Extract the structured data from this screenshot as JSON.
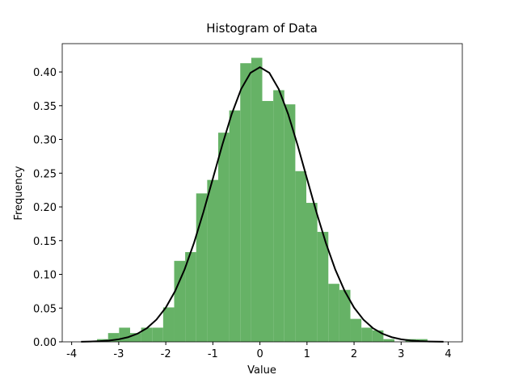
{
  "chart_data": {
    "type": "histogram",
    "title": "Histogram of Data",
    "x_label": "Value",
    "y_label": "Frequency",
    "bins": [
      -3.46,
      -3.226,
      -2.992,
      -2.758,
      -2.524,
      -2.29,
      -2.056,
      -1.822,
      -1.588,
      -1.354,
      -1.12,
      -0.886,
      -0.652,
      -0.418,
      -0.184,
      0.05,
      0.284,
      0.518,
      0.752,
      0.986,
      1.22,
      1.454,
      1.688,
      1.922,
      2.156,
      2.39,
      2.624,
      2.858,
      3.092,
      3.326,
      3.56
    ],
    "values": [
      0.004,
      0.013,
      0.021,
      0.013,
      0.021,
      0.021,
      0.051,
      0.12,
      0.133,
      0.22,
      0.24,
      0.31,
      0.343,
      0.413,
      0.421,
      0.357,
      0.373,
      0.352,
      0.253,
      0.206,
      0.163,
      0.086,
      0.077,
      0.034,
      0.021,
      0.017,
      0.004,
      0,
      0.004,
      0.004
    ],
    "color": "#66b266",
    "curve": {
      "color": "#000000",
      "x": [
        -3.8,
        -3.6,
        -3.4,
        -3.2,
        -3.0,
        -2.8,
        -2.6,
        -2.4,
        -2.2,
        -2.0,
        -1.8,
        -1.6,
        -1.4,
        -1.2,
        -1.0,
        -0.8,
        -0.6,
        -0.4,
        -0.2,
        0,
        0.2,
        0.4,
        0.6,
        0.8,
        1.0,
        1.2,
        1.4,
        1.6,
        1.8,
        2.0,
        2.2,
        2.4,
        2.6,
        2.8,
        3.0,
        3.2,
        3.4,
        3.6,
        3.9
      ],
      "y": [
        0.0002,
        0.0005,
        0.001,
        0.002,
        0.0038,
        0.0069,
        0.0121,
        0.0203,
        0.0328,
        0.0507,
        0.0754,
        0.1074,
        0.1468,
        0.1924,
        0.2419,
        0.2917,
        0.3375,
        0.3746,
        0.3987,
        0.4071,
        0.3987,
        0.3746,
        0.3375,
        0.2917,
        0.2419,
        0.1924,
        0.1468,
        0.1074,
        0.0754,
        0.0507,
        0.0328,
        0.0203,
        0.0121,
        0.0069,
        0.0038,
        0.002,
        0.001,
        0.0005,
        0.0001
      ]
    },
    "xlim": [
      -4.2,
      4.3
    ],
    "ylim": [
      0,
      0.442
    ],
    "xticks": [
      -4,
      -3,
      -2,
      -1,
      0,
      1,
      2,
      3,
      4
    ],
    "yticks": [
      {
        "value": 0,
        "label": "0.00"
      },
      {
        "value": 0.05,
        "label": "0.05"
      },
      {
        "value": 0.1,
        "label": "0.10"
      },
      {
        "value": 0.15,
        "label": "0.15"
      },
      {
        "value": 0.2,
        "label": "0.20"
      },
      {
        "value": 0.25,
        "label": "0.25"
      },
      {
        "value": 0.3,
        "label": "0.30"
      },
      {
        "value": 0.35,
        "label": "0.35"
      },
      {
        "value": 0.4,
        "label": "0.40"
      }
    ],
    "grid": false
  }
}
